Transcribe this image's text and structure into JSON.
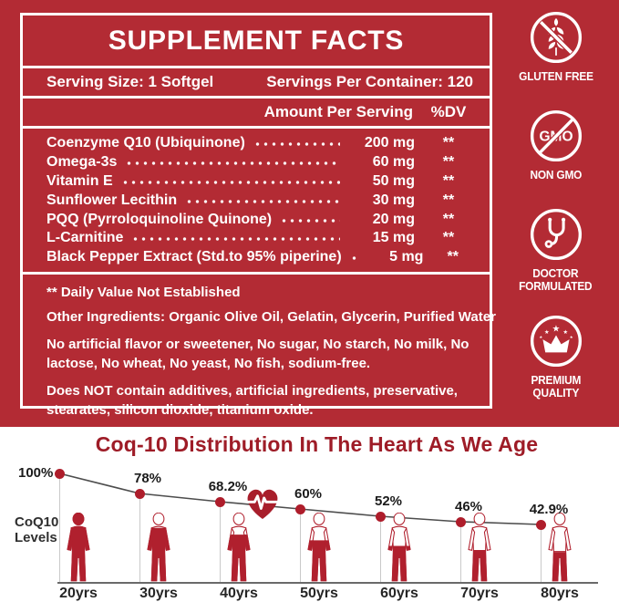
{
  "label_panel": {
    "title": "SUPPLEMENT FACTS",
    "serving_size": "Serving Size: 1 Softgel",
    "servings_per_container": "Servings Per Container: 120",
    "column_headers": {
      "amount": "Amount Per Serving",
      "dv": "%DV"
    },
    "ingredients": [
      {
        "name": "Coenzyme Q10 (Ubiquinone)",
        "amount": "200 mg",
        "dv": "**"
      },
      {
        "name": "Omega-3s",
        "amount": "60 mg",
        "dv": "**"
      },
      {
        "name": "Vitamin E",
        "amount": "50 mg",
        "dv": "**"
      },
      {
        "name": "Sunflower Lecithin",
        "amount": "30 mg",
        "dv": "**"
      },
      {
        "name": "PQQ (Pyrroloquinoline Quinone)",
        "amount": "20 mg",
        "dv": "**"
      },
      {
        "name": "L-Carnitine",
        "amount": "15 mg",
        "dv": "**"
      },
      {
        "name": "Black Pepper Extract (Std.to 95% piperine)",
        "amount": "5 mg",
        "dv": "**"
      }
    ],
    "footnotes": {
      "daily_value_note": "** Daily Value Not Established",
      "other_ingredients_label": "Other Ingredients",
      "other_ingredients_text": ": Organic Olive Oil, Gelatin, Glycerin, Purified Water",
      "allergen_note": "No artificial flavor or sweetener, No sugar, No starch, No milk, No lactose, No wheat, No yeast, No fish, sodium-free.",
      "additives_note": "Does NOT contain additives, artificial ingredients, preservative, stearates, silicon dioxide, titanium oxide."
    }
  },
  "badges": [
    {
      "icon": "wheat-crossed-icon",
      "lines": [
        "GLUTEN FREE",
        ""
      ]
    },
    {
      "icon": "gmo-crossed-icon",
      "gmo_text": "GMO",
      "lines": [
        "NON GMO",
        ""
      ]
    },
    {
      "icon": "stethoscope-icon",
      "lines": [
        "DOCTOR",
        "FORMULATED"
      ]
    },
    {
      "icon": "crown-stars-icon",
      "lines": [
        "PREMIUM",
        "QUALITY"
      ]
    }
  ],
  "chart_data": {
    "type": "line",
    "title": "Coq-10 Distribution In The Heart As We Age",
    "ylabel": "CoQ10 Levels",
    "xlabel": "",
    "categories": [
      "20yrs",
      "30yrs",
      "40yrs",
      "50yrs",
      "60yrs",
      "70yrs",
      "80yrs"
    ],
    "values": [
      100,
      78,
      68.2,
      60,
      52,
      46,
      42.9
    ],
    "point_labels": [
      "100%",
      "78%",
      "68.2%",
      "60%",
      "52%",
      "46%",
      "42.9%"
    ],
    "ylim": [
      0,
      100
    ],
    "grid": false,
    "legend": false,
    "marker_annotation": "heart-ecg-icon on line between 40yrs and 50yrs",
    "figure_fill_note": "human silhouettes filled to the CoQ10 percentage of each age"
  },
  "colors": {
    "panel_red": "#b32b34",
    "chart_title_red": "#9e1c27",
    "figure_red": "#b0202e",
    "dot_red": "#ae1d2b",
    "trend_line_gray": "#4d4d4d",
    "text_white": "#ffffff"
  }
}
